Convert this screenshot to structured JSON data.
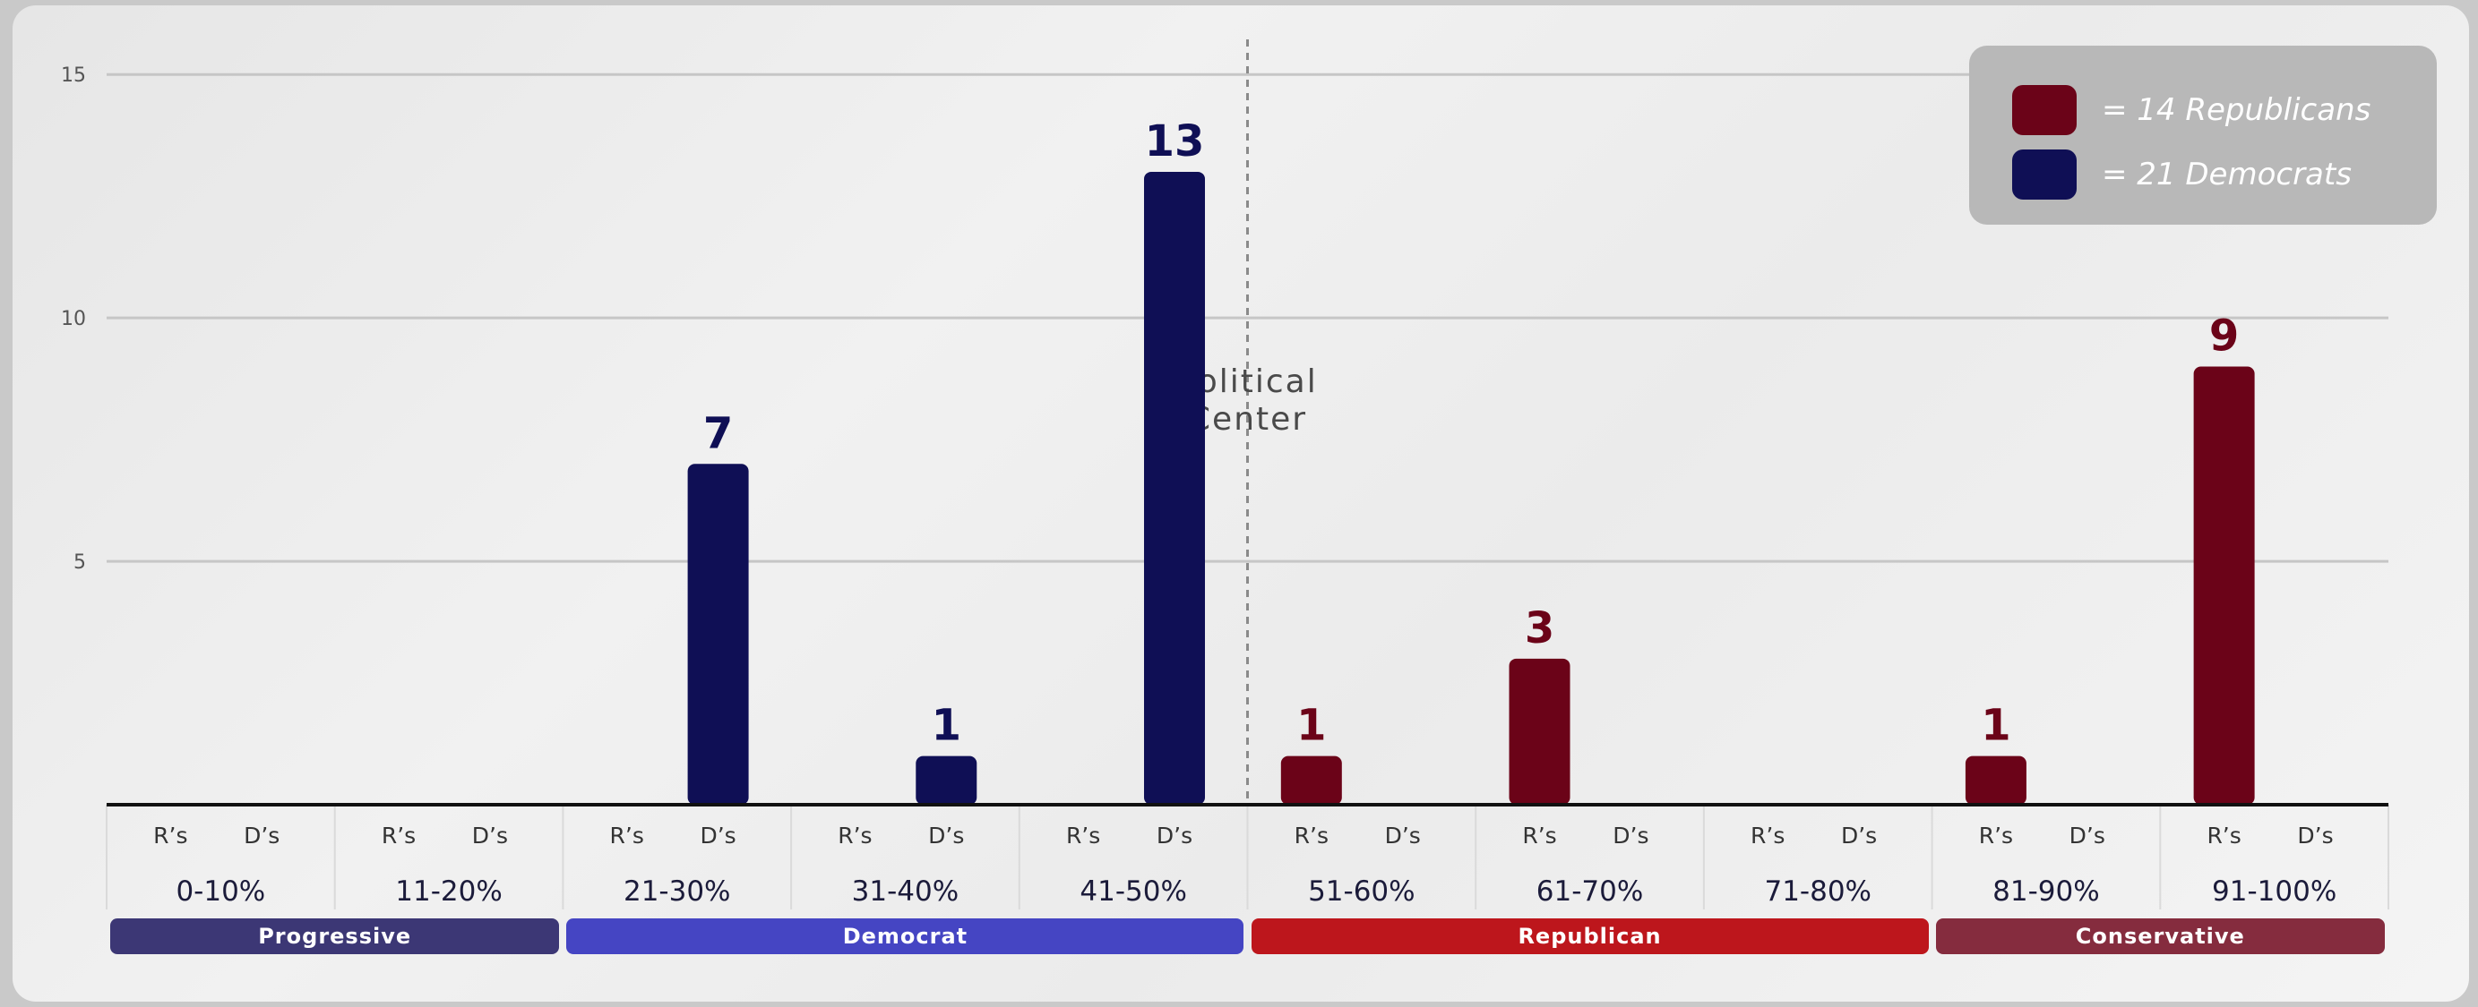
{
  "chart_data": {
    "type": "bar",
    "categories": [
      "0-10%",
      "11-20%",
      "21-30%",
      "31-40%",
      "41-50%",
      "51-60%",
      "61-70%",
      "71-80%",
      "81-90%",
      "91-100%"
    ],
    "sub_labels": [
      "R’s",
      "D’s"
    ],
    "series": [
      {
        "key": "R",
        "name": "Republicans",
        "color": "#6b0318",
        "values": [
          0,
          0,
          0,
          0,
          0,
          1,
          3,
          0,
          1,
          9
        ]
      },
      {
        "key": "D",
        "name": "Democrats",
        "color": "#0f0f55",
        "values": [
          0,
          0,
          7,
          1,
          13,
          0,
          0,
          0,
          0,
          0
        ]
      }
    ],
    "ylim": [
      0,
      15.5
    ],
    "yticks": [
      5,
      10,
      15
    ],
    "grid": true,
    "center_annotation": [
      "Political",
      "Center"
    ],
    "legend": {
      "placement": "top-right",
      "items": [
        {
          "text": "=  14 Republicans",
          "color": "#6b0318"
        },
        {
          "text": "=  21 Democrats",
          "color": "#0f0f55"
        }
      ]
    },
    "groups": [
      {
        "label": "Progressive",
        "from": 0,
        "to": 1,
        "color": "#3c3775"
      },
      {
        "label": "Democrat",
        "from": 2,
        "to": 4,
        "color": "#4545c3"
      },
      {
        "label": "Republican",
        "from": 5,
        "to": 7,
        "color": "#bd161c"
      },
      {
        "label": "Conservative",
        "from": 8,
        "to": 9,
        "color": "#852c3e"
      }
    ]
  }
}
